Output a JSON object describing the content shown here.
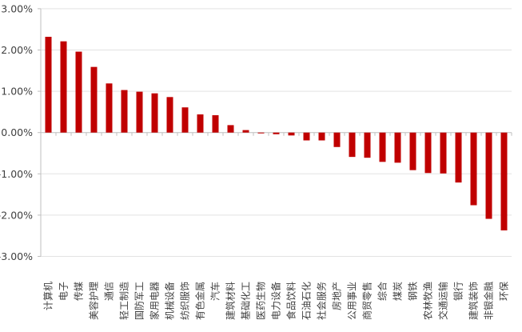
{
  "chart_data": {
    "type": "bar",
    "title": "",
    "xlabel": "",
    "ylabel": "",
    "ylim": [
      -3,
      3
    ],
    "yticks": [
      3,
      2,
      1,
      0,
      -1,
      -2,
      -3
    ],
    "ytick_labels": [
      "3.00%",
      "2.00%",
      "1.00%",
      "0.00%",
      "-1.00%",
      "-2.00%",
      "-3.00%"
    ],
    "grid": true,
    "legend": "none",
    "bar_color": "#C00000",
    "categories": [
      "计算机",
      "电子",
      "传媒",
      "美容护理",
      "通信",
      "轻工制造",
      "国防军工",
      "家用电器",
      "机械设备",
      "纺织服饰",
      "有色金属",
      "汽车",
      "建筑材料",
      "基础化工",
      "医药生物",
      "电力设备",
      "食品饮料",
      "石油石化",
      "社会服务",
      "房地产",
      "公用事业",
      "商贸零售",
      "综合",
      "煤炭",
      "钢铁",
      "农林牧渔",
      "交通运输",
      "银行",
      "建筑装饰",
      "非银金融",
      "环保"
    ],
    "values": [
      2.32,
      2.21,
      1.96,
      1.59,
      1.19,
      1.03,
      0.99,
      0.95,
      0.86,
      0.61,
      0.44,
      0.42,
      0.18,
      0.06,
      -0.02,
      -0.04,
      -0.07,
      -0.19,
      -0.19,
      -0.35,
      -0.59,
      -0.61,
      -0.71,
      -0.73,
      -0.91,
      -0.98,
      -0.99,
      -1.21,
      -1.76,
      -2.09,
      -2.37
    ]
  }
}
